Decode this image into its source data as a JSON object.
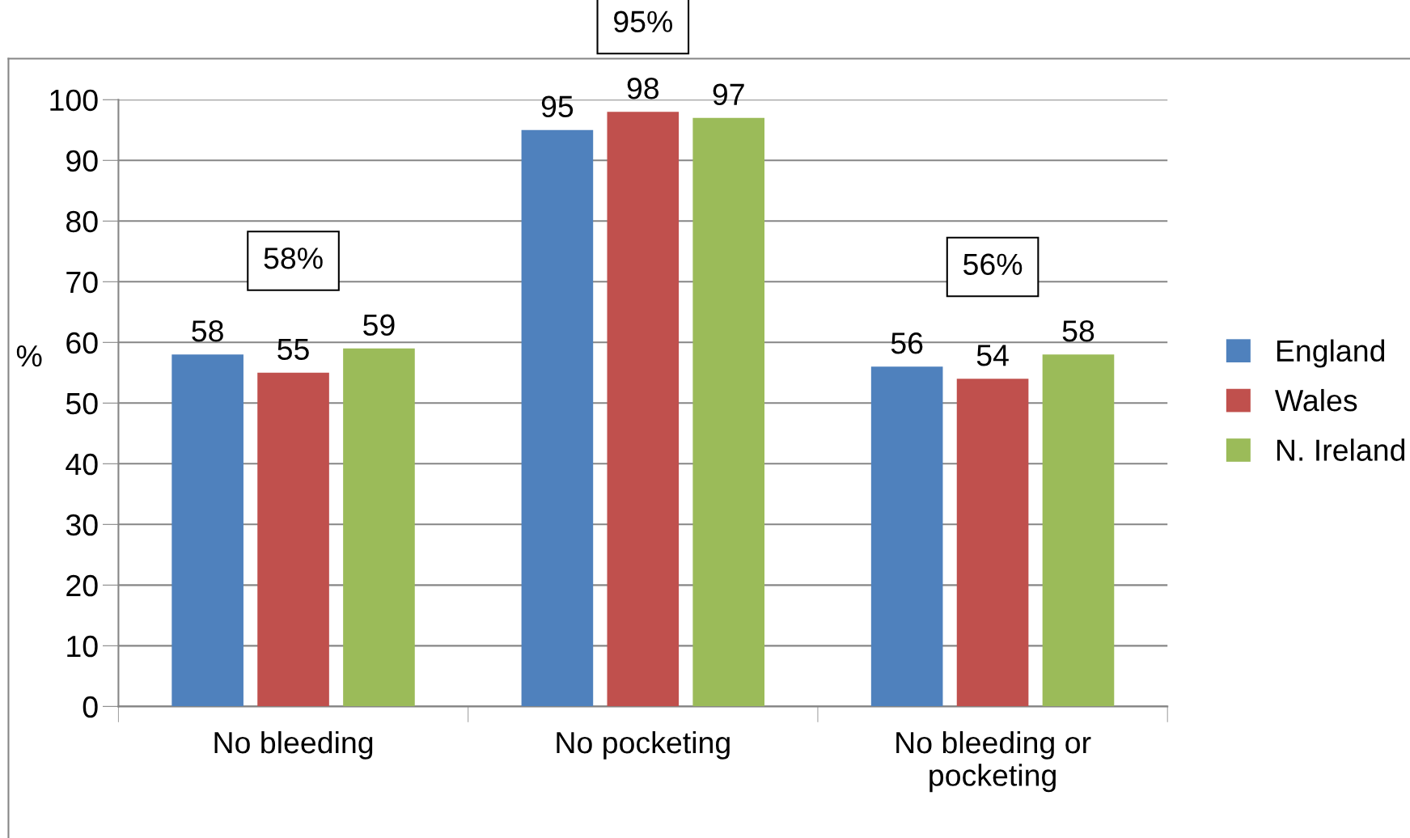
{
  "chart_data": {
    "type": "bar",
    "ylabel": "%",
    "categories": [
      "No bleeding",
      "No pocketing",
      "No bleeding or\npocketing"
    ],
    "series": [
      {
        "name": "England",
        "color": "#4f81bd",
        "values": [
          58,
          95,
          56
        ]
      },
      {
        "name": "Wales",
        "color": "#c0504d",
        "values": [
          55,
          98,
          54
        ]
      },
      {
        "name": "N. Ireland",
        "color": "#9bbb59",
        "values": [
          59,
          97,
          58
        ]
      }
    ],
    "ylim": [
      0,
      100
    ],
    "yticks": [
      0,
      10,
      20,
      30,
      40,
      50,
      60,
      70,
      80,
      90,
      100
    ],
    "grid": "y",
    "legend": "right",
    "data_labels": true,
    "annotations": [
      "58%",
      "95%",
      "56%"
    ]
  }
}
